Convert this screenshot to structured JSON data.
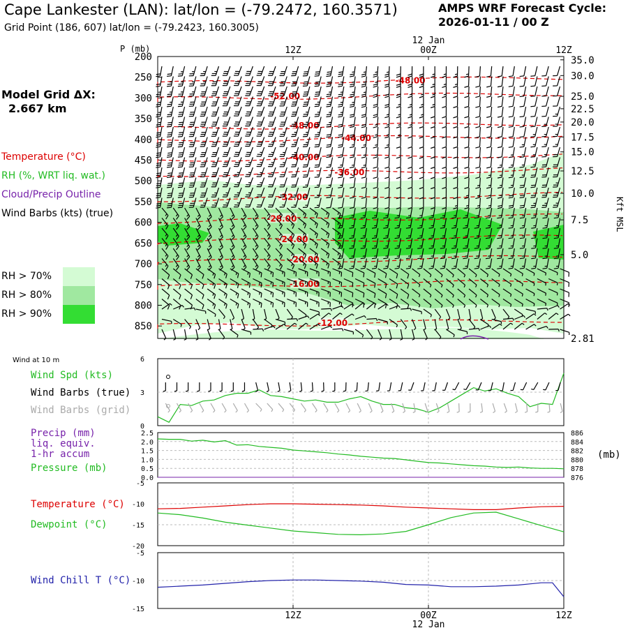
{
  "header": {
    "title": "Cape Lankester (LAN):  lat/lon = (-79.2472, 160.3571)",
    "subtitle": "Grid Point (186, 607) lat/lon = (-79.2423, 160.3005)",
    "cycle_line1": "AMPS WRF Forecast Cycle:",
    "cycle_line2": "2026-01-11 / 00  Z",
    "model_dx_line1": "Model Grid ΔX:",
    "model_dx_line2": "2.667 km"
  },
  "legend": {
    "temperature": "Temperature (°C)",
    "rh": "RH (%, WRT liq. wat.)",
    "cloud": "Cloud/Precip Outline",
    "wind": "Wind Barbs (kts) (true)",
    "rh70": "RH > 70%",
    "rh80": "RH > 80%",
    "rh90": "RH > 90%"
  },
  "colors": {
    "temperature": "#dd0000",
    "rh": "#22bb22",
    "cloud": "#7722aa",
    "rh70": "#d4fbd4",
    "rh80": "#a0e8a0",
    "rh90": "#33dd33",
    "windchill": "#2222aa",
    "grid_barbs": "#aaaaaa"
  },
  "chart_data": [
    {
      "type": "heatmap",
      "name": "cross-section",
      "y_label_left": "P (mb)",
      "y_label_right": "Kft MSL",
      "pressure_ticks": [
        "200",
        "250",
        "300",
        "350",
        "400",
        "450",
        "500",
        "550",
        "600",
        "650",
        "700",
        "750",
        "800",
        "850"
      ],
      "pressure_values": [
        200,
        250,
        300,
        350,
        400,
        450,
        500,
        550,
        600,
        650,
        700,
        750,
        800,
        850
      ],
      "height_ticks": [
        "35.0",
        "30.0",
        "25.0",
        "22.5",
        "20.0",
        "17.5",
        "15.0",
        "12.5",
        "10.0",
        "7.5",
        "5.0",
        "2.81"
      ],
      "height_tick_pressures": [
        208,
        246,
        296,
        326,
        358,
        394,
        430,
        476,
        530,
        594,
        678,
        880
      ],
      "time_ticks_top": [
        "12Z",
        "00Z",
        "12Z"
      ],
      "top_date_label": "12 Jan",
      "xlim_hours": [
        0,
        36
      ],
      "time_tick_hours": [
        12,
        24,
        36
      ],
      "temperature_isotherms": [
        {
          "label": "-48.00",
          "label_hour": 22.4,
          "pressure": 258
        },
        {
          "label": "-52.00",
          "label_hour": 11.3,
          "pressure": 296
        },
        {
          "label": "-48.00",
          "label_hour": 13.0,
          "pressure": 367
        },
        {
          "label": "-44.00",
          "label_hour": 17.6,
          "pressure": 397
        },
        {
          "label": "-40.00",
          "label_hour": 13.0,
          "pressure": 443
        },
        {
          "label": "-36.00",
          "label_hour": 17.0,
          "pressure": 479
        },
        {
          "label": "-32.00",
          "label_hour": 12.0,
          "pressure": 539
        },
        {
          "label": "-28.00",
          "label_hour": 11.0,
          "pressure": 591
        },
        {
          "label": "-24.00",
          "label_hour": 12.0,
          "pressure": 641
        },
        {
          "label": "-20.00",
          "label_hour": 13.0,
          "pressure": 690
        },
        {
          "label": "-16.00",
          "label_hour": 13.0,
          "pressure": 749
        },
        {
          "label": "-12.00",
          "label_hour": 15.5,
          "pressure": 843
        }
      ]
    },
    {
      "type": "line",
      "name": "wind-10m",
      "panel_title": "Wind at 10 m",
      "legend": [
        "Wind Spd (kts)",
        "Wind Barbs (true)",
        "Wind Barbs (grid)"
      ],
      "ylim": [
        0,
        6
      ],
      "y_ticks": [
        "0",
        "3",
        "6"
      ],
      "x_hours": [
        0,
        1,
        2,
        3,
        4,
        5,
        6,
        7,
        8,
        9,
        10,
        11,
        12,
        13,
        14,
        15,
        16,
        17,
        18,
        19,
        20,
        21,
        22,
        23,
        24,
        25,
        26,
        27,
        28,
        29,
        30,
        31,
        32,
        33,
        34,
        35,
        36
      ],
      "values": [
        0.8,
        0.3,
        1.9,
        1.8,
        2.2,
        2.3,
        2.7,
        2.9,
        2.9,
        3.2,
        2.7,
        2.6,
        2.4,
        2.2,
        2.3,
        2.1,
        2.1,
        2.4,
        2.6,
        2.2,
        1.9,
        1.9,
        1.6,
        1.5,
        1.2,
        1.6,
        2.2,
        2.8,
        3.4,
        3.1,
        3.3,
        2.9,
        2.6,
        1.7,
        2.0,
        1.9,
        4.7
      ]
    },
    {
      "type": "line",
      "name": "precip-pressure",
      "legend": [
        "Precip (mm)",
        "liq. equiv.",
        "1-hr accum",
        "Pressure (mb)"
      ],
      "ylim_left": [
        0,
        2.5
      ],
      "left_ticks": [
        "0.0",
        "0.5",
        "1.0",
        "1.5",
        "2.0",
        "2.5"
      ],
      "ylim_right": [
        876,
        886
      ],
      "right_ticks": [
        "876",
        "878",
        "880",
        "882",
        "884",
        "886"
      ],
      "right_unit": "(mb)",
      "x_hours": [
        0,
        1,
        2,
        3,
        4,
        5,
        6,
        7,
        8,
        9,
        10,
        11,
        12,
        13,
        14,
        15,
        16,
        17,
        18,
        19,
        20,
        21,
        22,
        23,
        24,
        25,
        26,
        27,
        28,
        29,
        30,
        31,
        32,
        33,
        34,
        35,
        36
      ],
      "pressure_values": [
        884.6,
        884.5,
        884.5,
        884.1,
        884.3,
        883.9,
        884.2,
        883.2,
        883.3,
        882.9,
        882.7,
        882.5,
        882.1,
        881.9,
        881.7,
        881.5,
        881.2,
        881.0,
        880.7,
        880.5,
        880.3,
        880.2,
        879.9,
        879.6,
        879.3,
        879.2,
        879.0,
        878.8,
        878.6,
        878.5,
        878.3,
        878.2,
        878.3,
        878.1,
        878.0,
        878.0,
        877.9
      ],
      "precip_values": [
        0,
        0,
        0,
        0,
        0,
        0,
        0,
        0,
        0,
        0,
        0,
        0,
        0,
        0,
        0,
        0,
        0,
        0,
        0,
        0,
        0,
        0,
        0,
        0,
        0,
        0,
        0,
        0,
        0,
        0,
        0,
        0,
        0,
        0,
        0,
        0,
        0
      ]
    },
    {
      "type": "line",
      "name": "temperature-dewpoint",
      "legend": [
        "Temperature (°C)",
        "Dewpoint (°C)"
      ],
      "ylim": [
        -20,
        -5
      ],
      "y_ticks": [
        "-5",
        "-10",
        "-15",
        "-20"
      ],
      "x_hours": [
        0,
        2,
        4,
        6,
        8,
        10,
        12,
        14,
        16,
        18,
        20,
        22,
        24,
        26,
        28,
        30,
        32,
        34,
        36
      ],
      "temperature": [
        -11.2,
        -11.1,
        -10.8,
        -10.5,
        -10.2,
        -10.0,
        -10.0,
        -10.1,
        -10.2,
        -10.3,
        -10.5,
        -10.8,
        -11.0,
        -11.2,
        -11.4,
        -11.4,
        -11.0,
        -10.7,
        -10.6
      ],
      "dewpoint": [
        -12.2,
        -12.6,
        -13.4,
        -14.4,
        -15.1,
        -15.8,
        -16.5,
        -16.9,
        -17.3,
        -17.4,
        -17.2,
        -16.6,
        -15.0,
        -13.3,
        -12.2,
        -12.0,
        -13.6,
        -15.2,
        -16.7
      ]
    },
    {
      "type": "line",
      "name": "wind-chill",
      "legend": [
        "Wind Chill T (°C)"
      ],
      "ylim": [
        -15,
        -5
      ],
      "y_ticks": [
        "-5",
        "-10",
        "-15"
      ],
      "x_hours": [
        0,
        2,
        4,
        6,
        8,
        10,
        12,
        14,
        16,
        18,
        20,
        22,
        24,
        26,
        28,
        30,
        32,
        34,
        35,
        36
      ],
      "values": [
        -11.2,
        -11.0,
        -10.8,
        -10.5,
        -10.2,
        -10.0,
        -9.9,
        -9.9,
        -10.0,
        -10.1,
        -10.3,
        -10.7,
        -10.8,
        -11.1,
        -11.1,
        -11.0,
        -10.8,
        -10.4,
        -10.4,
        -12.9
      ]
    }
  ],
  "bottom_axis": {
    "ticks": [
      "12Z",
      "00Z",
      "12Z"
    ],
    "date_label": "12 Jan"
  }
}
